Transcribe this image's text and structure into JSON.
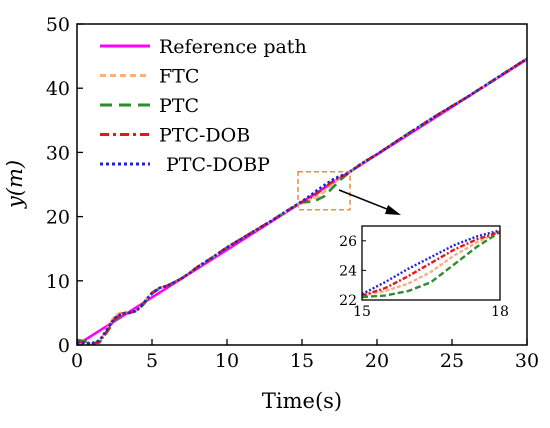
{
  "chart_data": {
    "type": "line",
    "title": "",
    "xlabel": "Time(s)",
    "ylabel": "y(m)",
    "xlim": [
      0,
      30
    ],
    "ylim": [
      0,
      50
    ],
    "x_ticks": [
      0,
      5,
      10,
      15,
      20,
      25,
      30
    ],
    "y_ticks": [
      0,
      10,
      20,
      30,
      40,
      50
    ],
    "grid": false,
    "legend_position": "top-left",
    "series": [
      {
        "name": "Reference path",
        "color": "#ff00ff",
        "style": "solid",
        "x": [
          0,
          30
        ],
        "y": [
          0,
          44.5
        ]
      },
      {
        "name": "FTC",
        "color": "#f4b183",
        "style": "dashed",
        "x": [
          0,
          0.5,
          1,
          1.5,
          2,
          2.5,
          3,
          3.5,
          4,
          4.5,
          5,
          5.5,
          6,
          6.5,
          7,
          7.5,
          8,
          9,
          10,
          11,
          12,
          13,
          14,
          15,
          15.5,
          16,
          16.5,
          17,
          17.5,
          18,
          19,
          20,
          22,
          24,
          26,
          28,
          30
        ],
        "y": [
          0.3,
          0.2,
          0.1,
          0.6,
          2.5,
          4.5,
          5.2,
          5.0,
          5.4,
          6.8,
          8.2,
          8.9,
          9.2,
          9.8,
          10.4,
          11.2,
          12.1,
          13.6,
          15.2,
          16.6,
          18.0,
          19.4,
          20.9,
          22.3,
          22.6,
          23.1,
          23.9,
          25.0,
          25.9,
          26.6,
          28.3,
          29.7,
          32.8,
          35.8,
          38.6,
          41.6,
          44.6
        ]
      },
      {
        "name": "PTC",
        "color": "#2e8b2e",
        "style": "dashed",
        "x": [
          0,
          0.5,
          1,
          1.5,
          2,
          2.5,
          3,
          3.5,
          4,
          4.5,
          5,
          5.5,
          6,
          6.5,
          7,
          7.5,
          8,
          9,
          10,
          11,
          12,
          13,
          14,
          15,
          15.5,
          16,
          16.5,
          17,
          17.5,
          18,
          19,
          20,
          22,
          24,
          26,
          28,
          30
        ],
        "y": [
          0.8,
          0.6,
          0.2,
          0.4,
          2.0,
          3.8,
          4.8,
          5.0,
          5.3,
          6.5,
          8.0,
          8.8,
          9.2,
          9.8,
          10.4,
          11.2,
          12.1,
          13.6,
          15.2,
          16.6,
          18.0,
          19.4,
          20.9,
          22.2,
          22.3,
          22.6,
          23.2,
          24.4,
          25.6,
          26.6,
          28.3,
          29.7,
          32.8,
          35.8,
          38.6,
          41.6,
          44.6
        ]
      },
      {
        "name": "PTC-DOB",
        "color": "#e31a1c",
        "style": "dashdot",
        "x": [
          0,
          0.5,
          1,
          1.5,
          2,
          2.5,
          3,
          3.5,
          4,
          4.5,
          5,
          5.5,
          6,
          6.5,
          7,
          7.5,
          8,
          9,
          10,
          11,
          12,
          13,
          14,
          15,
          15.5,
          16,
          16.5,
          17,
          17.5,
          18,
          19,
          20,
          22,
          24,
          26,
          28,
          30
        ],
        "y": [
          0.5,
          0.4,
          0.2,
          0.5,
          2.2,
          4.0,
          4.9,
          5.0,
          5.4,
          6.7,
          8.1,
          8.9,
          9.2,
          9.8,
          10.4,
          11.2,
          12.1,
          13.6,
          15.2,
          16.6,
          18.0,
          19.4,
          20.9,
          22.3,
          22.8,
          23.6,
          24.5,
          25.4,
          26.1,
          26.6,
          28.3,
          29.7,
          32.8,
          35.8,
          38.6,
          41.6,
          44.6
        ]
      },
      {
        "name": "PTC-DOBP",
        "color": "#1f1fe0",
        "style": "dotted",
        "x": [
          0,
          0.5,
          1,
          1.5,
          2,
          2.5,
          3,
          3.5,
          4,
          4.5,
          5,
          5.5,
          6,
          6.5,
          7,
          7.5,
          8,
          9,
          10,
          11,
          12,
          13,
          14,
          15,
          15.5,
          16,
          16.5,
          17,
          17.5,
          18,
          19,
          20,
          22,
          24,
          26,
          28,
          30
        ],
        "y": [
          0.4,
          0.3,
          0.3,
          0.7,
          2.4,
          4.2,
          4.9,
          5.0,
          5.4,
          6.7,
          8.1,
          8.9,
          9.2,
          9.8,
          10.4,
          11.2,
          12.1,
          13.6,
          15.2,
          16.6,
          18.0,
          19.4,
          20.9,
          22.4,
          23.2,
          24.1,
          24.9,
          25.7,
          26.3,
          26.7,
          28.3,
          29.7,
          32.8,
          35.8,
          38.6,
          41.6,
          44.6
        ]
      }
    ],
    "zoom_box": {
      "x": [
        15,
        18
      ],
      "y": [
        22,
        27
      ]
    },
    "inset": {
      "xlim": [
        15,
        18
      ],
      "ylim": [
        22,
        27
      ],
      "x_ticks": [
        15,
        18
      ],
      "y_ticks": [
        22,
        24,
        26
      ]
    }
  }
}
